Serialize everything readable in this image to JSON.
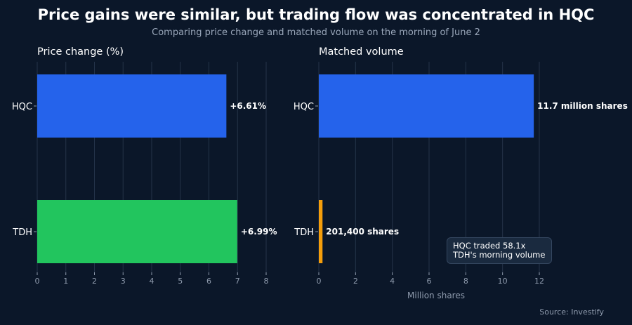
{
  "header": {
    "title": "Price gains were similar, but trading flow was concentrated in HQC",
    "subtitle": "Comparing price change and matched volume on the morning of June 2"
  },
  "source": "Source: Investify",
  "colors": {
    "background": "#0b1729",
    "hqc": "#2563eb",
    "tdh_price": "#22c55e",
    "tdh_volume": "#f59e0b",
    "grid": "#243349",
    "tick": "#8f9bad"
  },
  "chart_data": [
    {
      "type": "bar",
      "orientation": "horizontal",
      "title": "Price change (%)",
      "xlabel": "",
      "categories": [
        "HQC",
        "TDH"
      ],
      "values": [
        6.61,
        6.99
      ],
      "data_labels": [
        "+6.61%",
        "+6.99%"
      ],
      "xlim": [
        0,
        8
      ],
      "xticks": [
        0,
        1,
        2,
        3,
        4,
        5,
        6,
        7,
        8
      ],
      "grid": true
    },
    {
      "type": "bar",
      "orientation": "horizontal",
      "title": "Matched volume",
      "xlabel": "Million shares",
      "categories": [
        "HQC",
        "TDH"
      ],
      "values": [
        11.7,
        0.2014
      ],
      "data_labels": [
        "11.7 million shares",
        "201,400 shares"
      ],
      "xlim": [
        0,
        12
      ],
      "xticks": [
        0,
        2,
        4,
        6,
        8,
        10,
        12
      ],
      "grid": true,
      "annotation": "HQC traded 58.1x TDH's morning volume"
    }
  ]
}
